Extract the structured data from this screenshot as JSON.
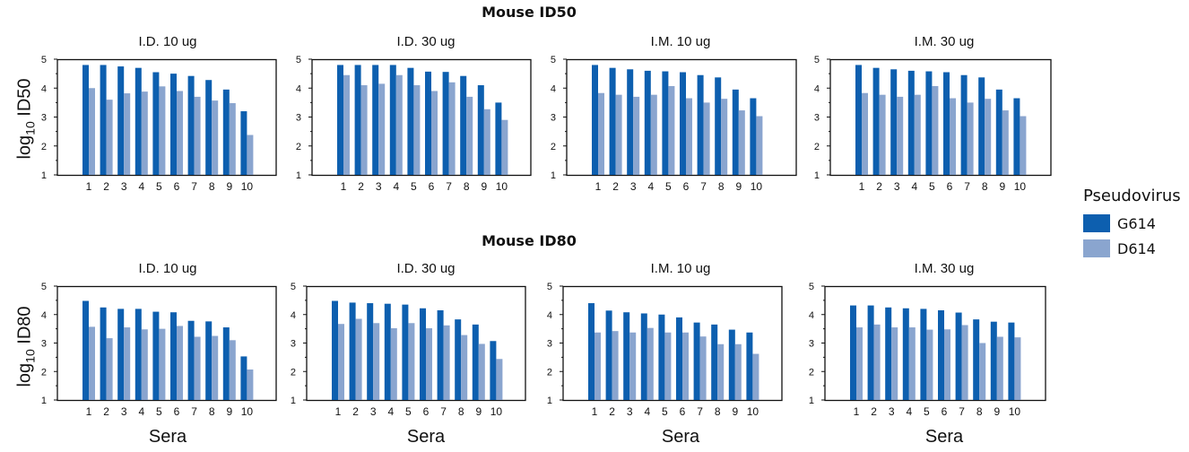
{
  "rows": [
    {
      "title": "Mouse ID50",
      "ylabel_main": "log",
      "ylabel_sub": "10",
      "ylabel_rest": " ID50"
    },
    {
      "title": "Mouse ID80",
      "ylabel_main": "log",
      "ylabel_sub": "10",
      "ylabel_rest": " ID80"
    }
  ],
  "sera_label": "Sera",
  "legend": {
    "title": "Pseudovirus",
    "items": [
      {
        "label": "G614",
        "color": "#0d5faf"
      },
      {
        "label": "D614",
        "color": "#8aa5cf"
      }
    ]
  },
  "chart_data": [
    {
      "type": "bar",
      "title": "I.D. 10 ug",
      "row": "Mouse ID50",
      "categories": [
        "1",
        "2",
        "3",
        "4",
        "5",
        "6",
        "7",
        "8",
        "9",
        "10"
      ],
      "ylim": [
        1,
        5
      ],
      "yticks": [
        "1",
        "2",
        "3",
        "4",
        "5"
      ],
      "series": [
        {
          "name": "G614",
          "values": [
            4.8,
            4.8,
            4.75,
            4.7,
            4.55,
            4.5,
            4.42,
            4.28,
            3.95,
            3.2
          ]
        },
        {
          "name": "D614",
          "values": [
            4.0,
            3.6,
            3.82,
            3.88,
            4.06,
            3.9,
            3.7,
            3.57,
            3.48,
            2.38
          ]
        }
      ]
    },
    {
      "type": "bar",
      "title": "I.D. 30 ug",
      "row": "Mouse ID50",
      "categories": [
        "1",
        "2",
        "3",
        "4",
        "5",
        "6",
        "7",
        "8",
        "9",
        "10"
      ],
      "ylim": [
        1,
        5
      ],
      "yticks": [
        "1",
        "2",
        "3",
        "4",
        "5"
      ],
      "series": [
        {
          "name": "G614",
          "values": [
            4.8,
            4.8,
            4.8,
            4.8,
            4.7,
            4.57,
            4.56,
            4.42,
            4.1,
            3.5
          ]
        },
        {
          "name": "D614",
          "values": [
            4.45,
            4.1,
            4.15,
            4.45,
            4.1,
            3.9,
            4.2,
            3.7,
            3.27,
            2.9
          ]
        }
      ]
    },
    {
      "type": "bar",
      "title": "I.M. 10 ug",
      "row": "Mouse ID50",
      "categories": [
        "1",
        "2",
        "3",
        "4",
        "5",
        "6",
        "7",
        "8",
        "9",
        "10"
      ],
      "ylim": [
        1,
        5
      ],
      "yticks": [
        "1",
        "2",
        "3",
        "4",
        "5"
      ],
      "series": [
        {
          "name": "G614",
          "values": [
            4.8,
            4.7,
            4.65,
            4.6,
            4.58,
            4.55,
            4.45,
            4.37,
            3.95,
            3.65
          ]
        },
        {
          "name": "D614",
          "values": [
            3.83,
            3.77,
            3.7,
            3.77,
            4.07,
            3.65,
            3.5,
            3.63,
            3.23,
            3.03
          ]
        }
      ]
    },
    {
      "type": "bar",
      "title": "I.M. 30 ug",
      "row": "Mouse ID50",
      "categories": [
        "1",
        "2",
        "3",
        "4",
        "5",
        "6",
        "7",
        "8",
        "9",
        "10"
      ],
      "ylim": [
        1,
        5
      ],
      "yticks": [
        "1",
        "2",
        "3",
        "4",
        "5"
      ],
      "series": [
        {
          "name": "G614",
          "values": [
            4.8,
            4.7,
            4.65,
            4.6,
            4.58,
            4.55,
            4.45,
            4.37,
            3.95,
            3.65
          ]
        },
        {
          "name": "D614",
          "values": [
            3.83,
            3.77,
            3.7,
            3.77,
            4.07,
            3.65,
            3.5,
            3.63,
            3.23,
            3.03
          ]
        }
      ]
    },
    {
      "type": "bar",
      "title": "I.D. 10 ug",
      "row": "Mouse ID80",
      "categories": [
        "1",
        "2",
        "3",
        "4",
        "5",
        "6",
        "7",
        "8",
        "9",
        "10"
      ],
      "ylim": [
        1,
        5
      ],
      "yticks": [
        "1",
        "2",
        "3",
        "4",
        "5"
      ],
      "series": [
        {
          "name": "G614",
          "values": [
            4.48,
            4.25,
            4.2,
            4.2,
            4.1,
            4.08,
            3.78,
            3.76,
            3.55,
            2.53
          ]
        },
        {
          "name": "D614",
          "values": [
            3.57,
            3.17,
            3.55,
            3.48,
            3.5,
            3.6,
            3.22,
            3.25,
            3.1,
            2.07
          ]
        }
      ]
    },
    {
      "type": "bar",
      "title": "I.D. 30 ug",
      "row": "Mouse ID80",
      "categories": [
        "1",
        "2",
        "3",
        "4",
        "5",
        "6",
        "7",
        "8",
        "9",
        "10"
      ],
      "ylim": [
        1,
        5
      ],
      "yticks": [
        "1",
        "2",
        "3",
        "4",
        "5"
      ],
      "series": [
        {
          "name": "G614",
          "values": [
            4.48,
            4.42,
            4.4,
            4.38,
            4.35,
            4.22,
            4.15,
            3.83,
            3.65,
            3.07
          ]
        },
        {
          "name": "D614",
          "values": [
            3.67,
            3.85,
            3.7,
            3.52,
            3.7,
            3.52,
            3.62,
            3.28,
            2.97,
            2.44
          ]
        }
      ]
    },
    {
      "type": "bar",
      "title": "I.M. 10 ug",
      "row": "Mouse ID80",
      "categories": [
        "1",
        "2",
        "3",
        "4",
        "5",
        "6",
        "7",
        "8",
        "9",
        "10"
      ],
      "ylim": [
        1,
        5
      ],
      "yticks": [
        "1",
        "2",
        "3",
        "4",
        "5"
      ],
      "series": [
        {
          "name": "G614",
          "values": [
            4.4,
            4.14,
            4.08,
            4.04,
            4.0,
            3.9,
            3.72,
            3.65,
            3.47,
            3.37
          ]
        },
        {
          "name": "D614",
          "values": [
            3.37,
            3.42,
            3.37,
            3.53,
            3.37,
            3.37,
            3.23,
            2.96,
            2.96,
            2.62
          ]
        }
      ]
    },
    {
      "type": "bar",
      "title": "I.M. 30 ug",
      "row": "Mouse ID80",
      "categories": [
        "1",
        "2",
        "3",
        "4",
        "5",
        "6",
        "7",
        "8",
        "9",
        "10"
      ],
      "ylim": [
        1,
        5
      ],
      "yticks": [
        "1",
        "2",
        "3",
        "4",
        "5"
      ],
      "series": [
        {
          "name": "G614",
          "values": [
            4.32,
            4.32,
            4.25,
            4.22,
            4.2,
            4.15,
            4.07,
            3.83,
            3.75,
            3.72
          ]
        },
        {
          "name": "D614",
          "values": [
            3.55,
            3.65,
            3.55,
            3.55,
            3.47,
            3.48,
            3.63,
            3.0,
            3.22,
            3.2
          ]
        }
      ]
    }
  ]
}
